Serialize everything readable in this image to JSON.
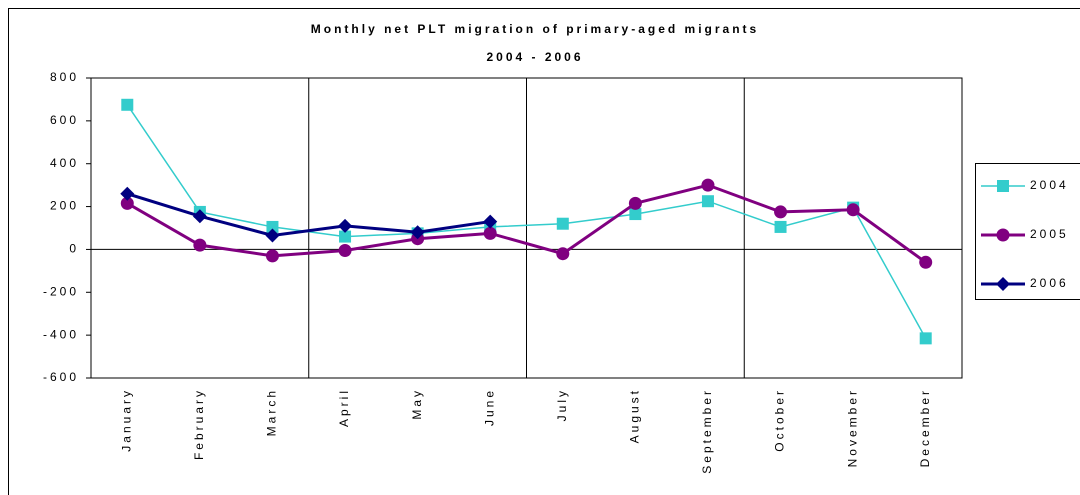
{
  "chart_data": {
    "type": "line",
    "title": "Monthly net PLT migration of primary-aged migrants",
    "subtitle": "2004 - 2006",
    "categories": [
      "January",
      "February",
      "March",
      "April",
      "May",
      "June",
      "July",
      "August",
      "September",
      "October",
      "November",
      "December"
    ],
    "series": [
      {
        "name": "2004",
        "color": "#33cccc",
        "marker": "square",
        "line_width": 1.5,
        "values": [
          675,
          175,
          105,
          60,
          75,
          105,
          120,
          165,
          225,
          105,
          195,
          -415
        ]
      },
      {
        "name": "2005",
        "color": "#800080",
        "marker": "circle",
        "line_width": 3,
        "values": [
          215,
          20,
          -30,
          -5,
          50,
          75,
          -20,
          215,
          300,
          175,
          185,
          -60
        ]
      },
      {
        "name": "2006",
        "color": "#000080",
        "marker": "diamond",
        "line_width": 3,
        "values": [
          260,
          155,
          65,
          110,
          80,
          130,
          null,
          null,
          null,
          null,
          null,
          null
        ]
      }
    ],
    "ylim": [
      -600,
      800
    ],
    "yticks": [
      -600,
      -400,
      -200,
      0,
      200,
      400,
      600,
      800
    ],
    "legend": "right"
  }
}
